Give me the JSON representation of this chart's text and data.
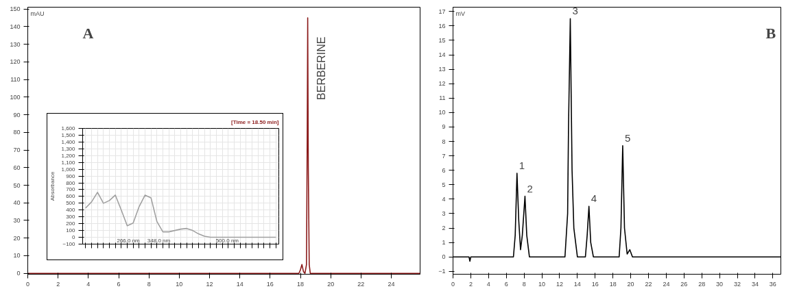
{
  "chart_data": [
    {
      "type": "line",
      "ylabel": "mAU",
      "xlim": [
        0,
        25.9
      ],
      "ylim": [
        -0.5,
        151
      ],
      "xticks": [
        0,
        2,
        4,
        6,
        8,
        10,
        12,
        14,
        16,
        18,
        20,
        22,
        24
      ],
      "yticks": [
        0,
        10,
        20,
        30,
        40,
        50,
        60,
        70,
        80,
        90,
        100,
        110,
        120,
        130,
        140,
        150
      ],
      "grid": false,
      "marker": "none",
      "series": [
        {
          "color": "#8b1a1a",
          "x": [
            0,
            2.5,
            3.5,
            17.9,
            18.0,
            18.1,
            18.2,
            18.3,
            18.4,
            18.45,
            18.48,
            18.52,
            18.58,
            18.65,
            19.0,
            25.9
          ],
          "values": [
            0,
            0,
            0,
            0,
            2,
            5,
            1,
            0,
            5,
            80,
            145,
            60,
            5,
            0,
            0,
            0
          ]
        }
      ],
      "annotations": [
        {
          "text": "A"
        },
        {
          "text": "BERBERINE",
          "x": 18.48,
          "y": 145
        }
      ]
    },
    {
      "type": "line",
      "title": "[Time = 18.50 min]",
      "ylabel": "Absorbance",
      "categories": [
        null,
        null,
        null,
        null,
        null,
        null,
        null,
        null,
        null,
        null,
        null,
        null,
        null,
        null,
        null,
        null,
        null,
        null,
        null,
        null,
        null,
        null,
        null,
        null,
        null,
        null,
        null,
        null,
        null,
        null,
        null,
        null,
        null
      ],
      "ylim": [
        -100,
        1600
      ],
      "yticks": [
        -100,
        0,
        100,
        200,
        300,
        400,
        500,
        600,
        700,
        800,
        900,
        {
          "value": 1000,
          "label": "1,000"
        },
        {
          "value": 1100,
          "label": "1,100"
        },
        {
          "value": 1200,
          "label": "1,200"
        },
        {
          "value": 1300,
          "label": "1,300"
        },
        {
          "value": 1400,
          "label": "1,400"
        },
        {
          "value": 1500,
          "label": "1,500"
        },
        {
          "value": 1600,
          "label": "1,600"
        }
      ],
      "grid": true,
      "marker": "none",
      "series": [
        {
          "color": "#a0a0a0",
          "values": [
            430,
            520,
            660,
            500,
            540,
            620,
            400,
            170,
            210,
            450,
            620,
            580,
            230,
            80,
            80,
            100,
            120,
            130,
            100,
            50,
            15,
            0,
            0,
            0,
            0,
            0,
            0,
            0,
            0,
            0,
            0,
            0,
            0
          ]
        }
      ],
      "annotations": [
        "266.0 nm",
        "348.0 nm",
        "500.0 nm"
      ]
    },
    {
      "type": "line",
      "ylabel": "mV",
      "xlim": [
        0,
        36.9
      ],
      "ylim": [
        -1.2,
        17.3
      ],
      "xticks": [
        0,
        2,
        4,
        6,
        8,
        10,
        12,
        14,
        16,
        18,
        20,
        22,
        24,
        26,
        28,
        30,
        32,
        34,
        36
      ],
      "yticks": [
        -1,
        0,
        1,
        2,
        3,
        4,
        5,
        6,
        7,
        8,
        9,
        10,
        11,
        12,
        13,
        14,
        15,
        16,
        17
      ],
      "grid": false,
      "marker": "none",
      "series": [
        {
          "color": "#000000",
          "x": [
            0,
            1.8,
            1.9,
            2.0,
            6.8,
            7.0,
            7.2,
            7.4,
            7.6,
            7.8,
            8.1,
            8.3,
            8.6,
            12.6,
            12.9,
            13.0,
            13.2,
            13.4,
            13.6,
            14.0,
            14.9,
            15.1,
            15.3,
            15.5,
            15.8,
            18.7,
            18.9,
            19.1,
            19.3,
            19.6,
            19.9,
            20.2,
            36.9
          ],
          "values": [
            0,
            0,
            -0.3,
            0,
            0,
            1.5,
            5.8,
            2.5,
            0.5,
            1.5,
            4.2,
            1.5,
            0,
            0,
            3,
            9,
            16.5,
            6,
            2,
            0,
            0,
            1.5,
            3.5,
            1,
            0,
            0,
            2,
            7.7,
            2,
            0.2,
            0.5,
            0,
            0
          ]
        }
      ],
      "annotations": [
        {
          "text": "B"
        },
        {
          "text": "1",
          "x": 7.2,
          "y": 5.8
        },
        {
          "text": "2",
          "x": 8.1,
          "y": 4.2
        },
        {
          "text": "3",
          "x": 13.2,
          "y": 16.5
        },
        {
          "text": "4",
          "x": 15.3,
          "y": 3.5
        },
        {
          "text": "5",
          "x": 19.1,
          "y": 7.7
        }
      ]
    }
  ]
}
